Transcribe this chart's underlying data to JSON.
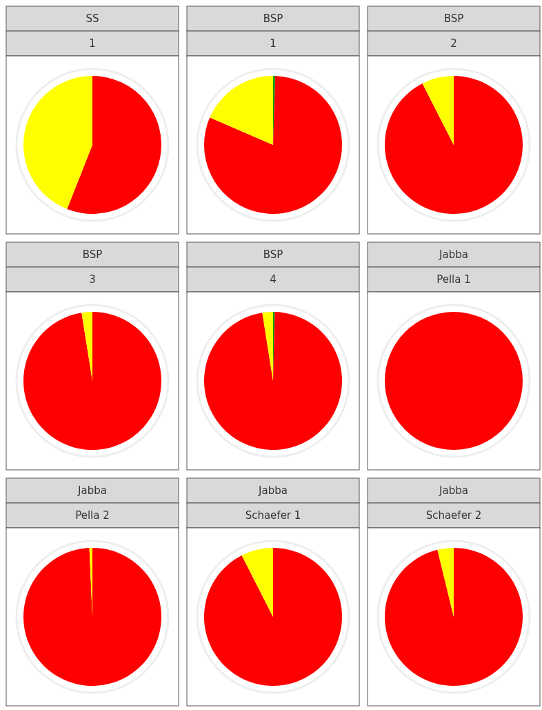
{
  "chart_data": [
    {
      "type": "pie",
      "title": "SS",
      "subtitle": "1",
      "categories": [
        null,
        null
      ],
      "values": [
        56,
        44
      ],
      "colors": [
        "#ff0000",
        "#ffff00"
      ]
    },
    {
      "type": "pie",
      "title": "BSP",
      "subtitle": "1",
      "categories": [
        null,
        null,
        null
      ],
      "values": [
        0.5,
        81,
        18.5
      ],
      "colors": [
        "#00a000",
        "#ff0000",
        "#ffff00"
      ]
    },
    {
      "type": "pie",
      "title": "BSP",
      "subtitle": "2",
      "categories": [
        null,
        null
      ],
      "values": [
        92.5,
        7.5
      ],
      "colors": [
        "#ff0000",
        "#ffff00"
      ]
    },
    {
      "type": "pie",
      "title": "BSP",
      "subtitle": "3",
      "categories": [
        null,
        null
      ],
      "values": [
        97.5,
        2.5
      ],
      "colors": [
        "#ff0000",
        "#ffff00"
      ]
    },
    {
      "type": "pie",
      "title": "BSP",
      "subtitle": "4",
      "categories": [
        null,
        null,
        null
      ],
      "values": [
        0.4,
        97.1,
        2.5
      ],
      "colors": [
        "#00a000",
        "#ff0000",
        "#ffff00"
      ]
    },
    {
      "type": "pie",
      "title": "Jabba",
      "subtitle": "Pella 1",
      "categories": [
        null
      ],
      "values": [
        100
      ],
      "colors": [
        "#ff0000"
      ]
    },
    {
      "type": "pie",
      "title": "Jabba",
      "subtitle": "Pella 2",
      "categories": [
        null,
        null
      ],
      "values": [
        99.3,
        0.7
      ],
      "colors": [
        "#ff0000",
        "#ffff00"
      ]
    },
    {
      "type": "pie",
      "title": "Jabba",
      "subtitle": "Schaefer 1",
      "categories": [
        null,
        null
      ],
      "values": [
        92.5,
        7.5
      ],
      "colors": [
        "#ff0000",
        "#ffff00"
      ]
    },
    {
      "type": "pie",
      "title": "Jabba",
      "subtitle": "Schaefer 2",
      "categories": [
        null,
        null
      ],
      "values": [
        96.2,
        3.8
      ],
      "colors": [
        "#ff0000",
        "#ffff00"
      ]
    }
  ]
}
